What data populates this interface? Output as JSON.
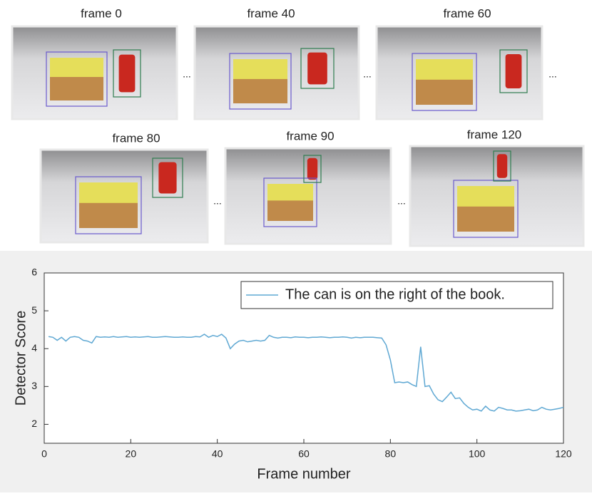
{
  "frames": [
    "frame 0",
    "frame 40",
    "frame 60",
    "frame 80",
    "frame 90",
    "frame 120"
  ],
  "ellipsis": "...",
  "chart_data": {
    "type": "line",
    "xlabel": "Frame number",
    "ylabel": "Detector Score",
    "x": [
      1,
      2,
      3,
      4,
      5,
      6,
      7,
      8,
      9,
      10,
      11,
      12,
      13,
      14,
      15,
      16,
      17,
      18,
      19,
      20,
      21,
      22,
      23,
      24,
      25,
      26,
      27,
      28,
      29,
      30,
      31,
      32,
      33,
      34,
      35,
      36,
      37,
      38,
      39,
      40,
      41,
      42,
      43,
      44,
      45,
      46,
      47,
      48,
      49,
      50,
      51,
      52,
      53,
      54,
      55,
      56,
      57,
      58,
      59,
      60,
      61,
      62,
      63,
      64,
      65,
      66,
      67,
      68,
      69,
      70,
      71,
      72,
      73,
      74,
      75,
      76,
      77,
      78,
      79,
      80,
      81,
      82,
      83,
      84,
      85,
      86,
      87,
      88,
      89,
      90,
      91,
      92,
      93,
      94,
      95,
      96,
      97,
      98,
      99,
      100,
      101,
      102,
      103,
      104,
      105,
      106,
      107,
      108,
      109,
      110,
      111,
      112,
      113,
      114,
      115,
      116,
      117,
      118,
      119,
      120
    ],
    "series": [
      {
        "name": "The can is on the right of the book.",
        "color": "#5fa8d3",
        "values": [
          4.32,
          4.3,
          4.22,
          4.3,
          4.2,
          4.3,
          4.32,
          4.3,
          4.22,
          4.2,
          4.15,
          4.32,
          4.3,
          4.31,
          4.3,
          4.32,
          4.3,
          4.31,
          4.32,
          4.3,
          4.31,
          4.3,
          4.31,
          4.32,
          4.3,
          4.3,
          4.31,
          4.32,
          4.31,
          4.3,
          4.3,
          4.31,
          4.3,
          4.3,
          4.32,
          4.31,
          4.38,
          4.3,
          4.35,
          4.32,
          4.38,
          4.28,
          4.0,
          4.12,
          4.2,
          4.22,
          4.18,
          4.2,
          4.22,
          4.2,
          4.22,
          4.35,
          4.3,
          4.28,
          4.3,
          4.3,
          4.29,
          4.31,
          4.3,
          4.3,
          4.29,
          4.3,
          4.3,
          4.31,
          4.3,
          4.29,
          4.3,
          4.3,
          4.31,
          4.3,
          4.28,
          4.3,
          4.29,
          4.3,
          4.3,
          4.3,
          4.29,
          4.28,
          4.1,
          3.7,
          3.1,
          3.12,
          3.1,
          3.12,
          3.05,
          3.0,
          4.05,
          3.0,
          3.02,
          2.8,
          2.65,
          2.6,
          2.72,
          2.85,
          2.68,
          2.7,
          2.55,
          2.45,
          2.38,
          2.4,
          2.35,
          2.48,
          2.38,
          2.35,
          2.45,
          2.42,
          2.38,
          2.38,
          2.35,
          2.36,
          2.38,
          2.4,
          2.36,
          2.38,
          2.45,
          2.4,
          2.38,
          2.4,
          2.42,
          2.45
        ]
      }
    ],
    "xlim": [
      0,
      120
    ],
    "xticks": [
      0,
      20,
      40,
      60,
      80,
      100,
      120
    ],
    "ylim": [
      1.5,
      6
    ],
    "yticks": [
      2,
      3,
      4,
      5,
      6
    ],
    "legend": "upper right"
  }
}
